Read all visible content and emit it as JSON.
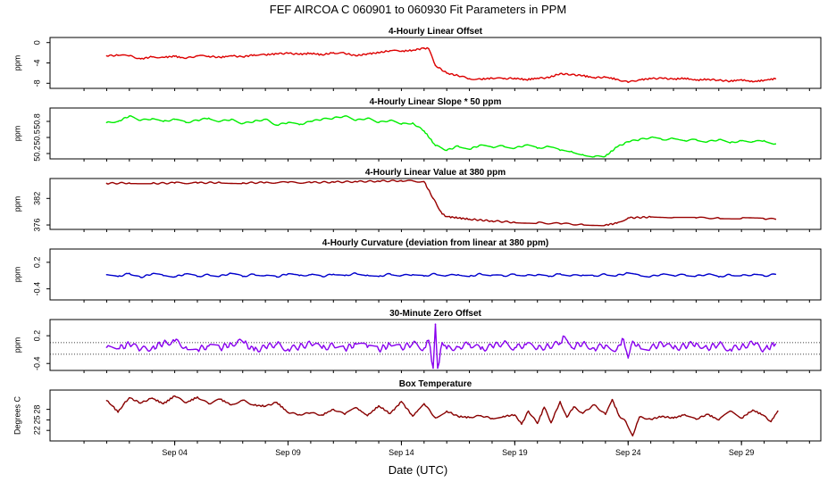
{
  "figure": {
    "title": "FEF   AIRCOA C   060901 to 060930   Fit Parameters in PPM",
    "xlabel": "Date (UTC)"
  },
  "chart_data": [
    {
      "type": "line",
      "title": "4-Hourly Linear Offset",
      "ylabel": "ppm",
      "ylim": [
        -9,
        1
      ],
      "yticks": [
        0,
        -4,
        -8
      ],
      "ytick_labels": [
        "0",
        "-4",
        "-8"
      ],
      "color": "#dd0000",
      "x": [
        1,
        1.5,
        2,
        2.5,
        3,
        3.5,
        4,
        4.5,
        5,
        5.5,
        6,
        6.5,
        7,
        7.5,
        8,
        8.5,
        9,
        9.5,
        10,
        10.5,
        11,
        11.5,
        12,
        12.5,
        13,
        13.5,
        14,
        14.5,
        15,
        15.2,
        15.5,
        16,
        16.5,
        17,
        17.5,
        18,
        18.5,
        19,
        19.5,
        20,
        20.5,
        21,
        21.5,
        22,
        22.5,
        23,
        23.5,
        24,
        24.5,
        25,
        25.5,
        26,
        26.5,
        27,
        27.5,
        28,
        28.5,
        29,
        29.5,
        30,
        30.5
      ],
      "values": [
        -2.6,
        -2.5,
        -2.6,
        -3.2,
        -2.8,
        -2.9,
        -2.7,
        -3.1,
        -2.6,
        -2.7,
        -2.9,
        -2.6,
        -2.8,
        -2.4,
        -2.4,
        -2.2,
        -2.1,
        -2.3,
        -2.1,
        -2.4,
        -2.0,
        -2.1,
        -2.6,
        -2.2,
        -2.0,
        -1.6,
        -1.7,
        -1.5,
        -1.1,
        -1.2,
        -4.5,
        -6.0,
        -6.5,
        -7.1,
        -7.2,
        -7.0,
        -7.1,
        -7.0,
        -7.3,
        -7.0,
        -6.9,
        -6.1,
        -6.3,
        -6.5,
        -6.9,
        -6.8,
        -7.2,
        -7.8,
        -7.3,
        -7.1,
        -7.0,
        -7.2,
        -7.0,
        -7.4,
        -7.2,
        -7.4,
        -7.6,
        -7.3,
        -7.7,
        -7.4,
        -7.1
      ]
    },
    {
      "type": "line",
      "title": "4-Hourly Linear Slope * 50 ppm",
      "ylabel": "ppm",
      "ylim": [
        50.1,
        51.05
      ],
      "yticks": [
        50.8,
        50.5,
        50.2
      ],
      "ytick_labels": [
        "50.8",
        "50.5",
        "50.2"
      ],
      "color": "#00ee00",
      "x": [
        1,
        1.5,
        2,
        2.5,
        3,
        3.5,
        4,
        4.5,
        5,
        5.5,
        6,
        6.5,
        7,
        7.5,
        8,
        8.5,
        9,
        9.5,
        10,
        10.5,
        11,
        11.5,
        12,
        12.5,
        13,
        13.5,
        14,
        14.5,
        15,
        15.5,
        16,
        16.5,
        17,
        17.5,
        18,
        18.5,
        19,
        19.5,
        20,
        20.5,
        21,
        21.5,
        22,
        22.5,
        23,
        23.5,
        24,
        24.5,
        25,
        25.5,
        26,
        26.5,
        27,
        27.5,
        28,
        28.5,
        29,
        29.5,
        30,
        30.5
      ],
      "values": [
        50.78,
        50.8,
        50.9,
        50.82,
        50.85,
        50.8,
        50.84,
        50.78,
        50.82,
        50.86,
        50.8,
        50.84,
        50.76,
        50.8,
        50.84,
        50.73,
        50.78,
        50.74,
        50.8,
        50.84,
        50.86,
        50.9,
        50.82,
        50.86,
        50.78,
        50.82,
        50.75,
        50.77,
        50.62,
        50.35,
        50.26,
        50.34,
        50.28,
        50.36,
        50.32,
        50.34,
        50.3,
        50.36,
        50.3,
        50.33,
        50.26,
        50.24,
        50.18,
        50.14,
        50.15,
        50.32,
        50.42,
        50.46,
        50.5,
        50.46,
        50.48,
        50.44,
        50.46,
        50.42,
        50.46,
        50.4,
        50.44,
        50.42,
        50.44,
        50.38
      ]
    },
    {
      "type": "line",
      "title": "4-Hourly Linear Value at 380 ppm",
      "ylabel": "ppm",
      "ylim": [
        375,
        386.5
      ],
      "yticks": [
        382,
        376
      ],
      "ytick_labels": [
        "382",
        "376"
      ],
      "color": "#990000",
      "x": [
        1,
        2,
        3,
        4,
        5,
        6,
        7,
        8,
        9,
        10,
        11,
        12,
        13,
        14,
        15,
        15.4,
        15.8,
        16,
        17,
        18,
        19,
        20,
        21,
        22,
        23,
        23.5,
        24,
        25,
        26,
        27,
        28,
        29,
        30,
        30.5
      ],
      "values": [
        385.4,
        385.5,
        385.4,
        385.5,
        385.5,
        385.6,
        385.5,
        385.6,
        385.6,
        385.6,
        385.7,
        385.8,
        385.9,
        386.0,
        385.8,
        382.0,
        378.5,
        377.9,
        377.3,
        376.9,
        376.6,
        376.5,
        376.3,
        376.1,
        376.0,
        376.4,
        377.6,
        377.8,
        377.7,
        377.6,
        377.6,
        377.5,
        377.4,
        377.3
      ]
    },
    {
      "type": "line",
      "title": "4-Hourly Curvature (deviation from linear at 380 ppm)",
      "ylabel": "ppm",
      "ylim": [
        -0.65,
        0.5
      ],
      "yticks": [
        0.2,
        -0.4
      ],
      "ytick_labels": [
        "0.2",
        "-0.4"
      ],
      "color": "#0000cc",
      "x": [
        1,
        1.5,
        2,
        2.5,
        3,
        3.5,
        4,
        4.5,
        5,
        5.5,
        6,
        6.5,
        7,
        7.5,
        8,
        8.5,
        9,
        9.5,
        10,
        10.5,
        11,
        11.5,
        12,
        12.5,
        13,
        13.5,
        14,
        14.5,
        15,
        15.5,
        16,
        16.5,
        17,
        17.5,
        18,
        18.5,
        19,
        19.5,
        20,
        20.5,
        21,
        21.5,
        22,
        22.5,
        23,
        23.5,
        24,
        24.5,
        25,
        25.5,
        26,
        26.5,
        27,
        27.5,
        28,
        28.5,
        29,
        29.5,
        30,
        30.5
      ],
      "values": [
        -0.08,
        -0.12,
        -0.05,
        -0.14,
        -0.06,
        -0.1,
        -0.13,
        -0.06,
        -0.12,
        -0.08,
        -0.11,
        -0.05,
        -0.12,
        -0.07,
        -0.1,
        -0.13,
        -0.06,
        -0.1,
        -0.08,
        -0.12,
        -0.07,
        -0.1,
        -0.05,
        -0.09,
        -0.12,
        -0.06,
        -0.1,
        -0.08,
        -0.11,
        -0.06,
        -0.1,
        -0.08,
        -0.12,
        -0.06,
        -0.09,
        -0.11,
        -0.07,
        -0.1,
        -0.08,
        -0.12,
        -0.06,
        -0.1,
        -0.09,
        -0.11,
        -0.07,
        -0.1,
        -0.04,
        -0.09,
        -0.12,
        -0.07,
        -0.1,
        -0.08,
        -0.11,
        -0.07,
        -0.13,
        -0.08,
        -0.1,
        -0.08,
        -0.11,
        -0.07
      ]
    },
    {
      "type": "line",
      "title": "30-Minute Zero Offset",
      "ylabel": "ppm",
      "ylim": [
        -0.55,
        0.55
      ],
      "yticks": [
        0.2,
        -0.4
      ],
      "ytick_labels": [
        "0.2",
        "-0.4"
      ],
      "reference_lines": [
        0.05,
        -0.2
      ],
      "color": "#8800ee",
      "x": [
        1,
        1.5,
        2,
        2.5,
        3,
        3.5,
        4,
        4.5,
        5,
        5.5,
        6,
        6.5,
        7,
        7.5,
        8,
        8.5,
        9,
        9.5,
        10,
        10.5,
        11,
        11.5,
        12,
        12.5,
        13,
        13.5,
        14,
        14.5,
        15,
        15.2,
        15.4,
        15.5,
        15.6,
        15.8,
        16,
        16.5,
        17,
        17.5,
        18,
        18.5,
        19,
        19.5,
        20,
        20.5,
        21,
        21.2,
        21.5,
        22,
        22.5,
        23,
        23.5,
        23.8,
        24,
        24.2,
        24.5,
        25,
        25.5,
        26,
        26.5,
        27,
        27.5,
        28,
        28.5,
        29,
        29.5,
        30,
        30.5
      ],
      "values": [
        -0.05,
        -0.08,
        0.02,
        -0.1,
        -0.06,
        0.04,
        0.08,
        -0.04,
        -0.1,
        -0.02,
        -0.07,
        0.03,
        0.07,
        -0.12,
        -0.05,
        0.02,
        -0.09,
        -0.04,
        0.03,
        -0.07,
        -0.01,
        -0.08,
        0.02,
        -0.05,
        -0.1,
        0.01,
        -0.06,
        0.03,
        -0.07,
        0.1,
        -0.5,
        0.45,
        -0.5,
        0.05,
        -0.08,
        -0.04,
        0.02,
        -0.09,
        -0.03,
        0.04,
        -0.06,
        0.01,
        -0.08,
        -0.02,
        0.03,
        0.18,
        -0.05,
        0.04,
        -0.07,
        -0.01,
        -0.09,
        0.12,
        -0.28,
        0.08,
        -0.02,
        -0.06,
        0.03,
        -0.08,
        -0.02,
        0.04,
        -0.07,
        0.02,
        -0.09,
        -0.03,
        0.03,
        -0.1,
        0.02
      ]
    },
    {
      "type": "line",
      "title": "Box Temperature",
      "ylabel": "Degrees C",
      "ylim": [
        19,
        33.5
      ],
      "yticks": [
        28,
        25,
        22
      ],
      "ytick_labels": [
        "28",
        "25",
        "22"
      ],
      "color": "#880000",
      "x": [
        1,
        1.25,
        1.5,
        1.75,
        2,
        2.5,
        3,
        3.5,
        4,
        4.5,
        5,
        5.5,
        6,
        6.5,
        7,
        7.5,
        8,
        8.5,
        9,
        9.5,
        10,
        10.5,
        11,
        11.5,
        12,
        12.5,
        13,
        13.5,
        14,
        14.5,
        15,
        15.5,
        16,
        16.5,
        17,
        17.5,
        18,
        18.5,
        19,
        19.3,
        19.6,
        20,
        20.3,
        20.6,
        21,
        21.3,
        21.6,
        22,
        22.5,
        23,
        23.3,
        23.6,
        23.9,
        24.2,
        24.5,
        25,
        25.5,
        26,
        26.5,
        27,
        27.5,
        28,
        28.5,
        29,
        29.5,
        30,
        30.3,
        30.6
      ],
      "values": [
        30.5,
        29.0,
        27.2,
        29.5,
        31.3,
        29.8,
        31.2,
        29.6,
        31.8,
        29.9,
        31.5,
        29.6,
        30.9,
        29.3,
        30.6,
        29.2,
        28.9,
        30.0,
        27.1,
        26.5,
        27.0,
        26.4,
        28.0,
        26.6,
        28.5,
        26.2,
        29.0,
        26.8,
        30.2,
        26.1,
        29.6,
        25.6,
        27.5,
        26.0,
        25.7,
        26.2,
        25.4,
        26.0,
        26.4,
        23.8,
        27.5,
        24.0,
        28.6,
        24.2,
        30.2,
        25.8,
        28.7,
        26.9,
        29.3,
        26.6,
        30.8,
        26.2,
        24.5,
        20.5,
        25.8,
        25.2,
        26.0,
        25.5,
        26.5,
        25.2,
        26.6,
        25.0,
        27.5,
        25.5,
        27.8,
        26.2,
        24.5,
        27.5
      ]
    }
  ],
  "x_axis": {
    "range": [
      -1.5,
      32.5
    ],
    "ticks": [
      4,
      9,
      14,
      19,
      24,
      29
    ],
    "tick_labels": [
      "Sep 04",
      "Sep 09",
      "Sep 14",
      "Sep 19",
      "Sep 24",
      "Sep 29"
    ],
    "minor_ticks": [
      0,
      1,
      2,
      3,
      4,
      5,
      6,
      7,
      8,
      9,
      10,
      11,
      12,
      13,
      14,
      15,
      16,
      17,
      18,
      19,
      20,
      21,
      22,
      23,
      24,
      25,
      26,
      27,
      28,
      29,
      30,
      31,
      32
    ]
  }
}
